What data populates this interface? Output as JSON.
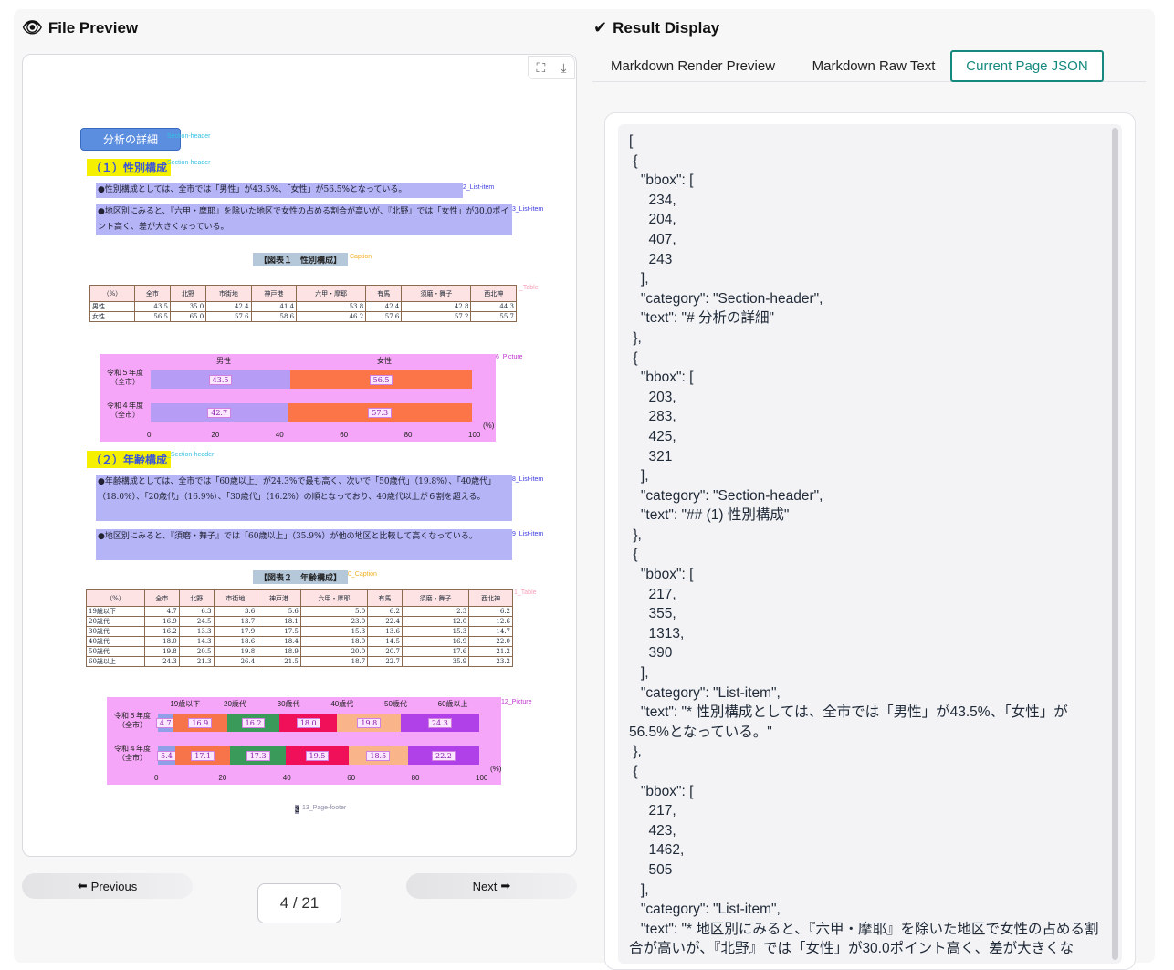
{
  "left_panel": {
    "title": "File Preview",
    "title_icon": "eye-icon",
    "toolbar": {
      "fullscreen_icon": "fullscreen-icon",
      "download_icon": "download-icon"
    },
    "document": {
      "section_header": "分析の詳細",
      "section_tag": "Section-header",
      "sub1": "（１）性別構成",
      "sub1_tag": "Section-header",
      "item2": "●性別構成としては、全市では「男性」が43.5%、「女性」が56.5%となっている。",
      "item2_tag": "2_List-item",
      "item3": "●地区別にみると、『六甲・摩耶』を除いた地区で女性の占める割合が高いが、『北野』では「女性」が30.0ポイント高く、差が大きくなっている。",
      "item3_tag": "3_List-item",
      "caption1": "【図表１　性別構成】",
      "caption1_tag": "Caption",
      "table1_tag": "_Table",
      "table1": {
        "headers": [
          "（%）",
          "全市",
          "北野",
          "市街地",
          "神戸港",
          "六甲・摩耶",
          "有馬",
          "須磨・舞子",
          "西北神"
        ],
        "rows": [
          [
            "男性",
            "43.5",
            "35.0",
            "42.4",
            "41.4",
            "53.8",
            "42.4",
            "42.8",
            "44.3"
          ],
          [
            "女性",
            "56.5",
            "65.0",
            "57.6",
            "58.6",
            "46.2",
            "57.6",
            "57.2",
            "55.7"
          ]
        ]
      },
      "picture1_tag": "6_Picture",
      "picture1": {
        "legend": [
          "男性",
          "女性"
        ],
        "rows": [
          {
            "label": "令和５年度\n（全市）",
            "values": [
              "43.5",
              "56.5"
            ]
          },
          {
            "label": "令和４年度\n（全市）",
            "values": [
              "42.7",
              "57.3"
            ]
          }
        ],
        "axis": [
          "0",
          "20",
          "40",
          "60",
          "80",
          "100"
        ],
        "unit": "(%)"
      },
      "sub2": "（２）年齢構成",
      "sub2_tag": "_Section-header",
      "item8": "●年齢構成としては、全市では「60歳以上」が24.3%で最も高く、次いで「50歳代」（19.8%）、「40歳代」（18.0%）、「20歳代」（16.9%）、「30歳代」（16.2%）の順となっており、40歳代以上が６割を超える。",
      "item8_tag": "8_List-item",
      "item9": "●地区別にみると、『須磨・舞子』では「60歳以上」（35.9%）が他の地区と比較して高くなっている。",
      "item9_tag": "9_List-item",
      "caption2": "【図表２　年齢構成】",
      "caption2_tag": "0_Caption",
      "table2_tag": "1_Table",
      "table2": {
        "headers": [
          "（%）",
          "全市",
          "北野",
          "市街地",
          "神戸港",
          "六甲・摩耶",
          "有馬",
          "須磨・舞子",
          "西北神"
        ],
        "rows": [
          [
            "19歳以下",
            "4.7",
            "6.3",
            "3.6",
            "5.6",
            "5.0",
            "6.2",
            "2.3",
            "6.2"
          ],
          [
            "20歳代",
            "16.9",
            "24.5",
            "13.7",
            "18.1",
            "23.0",
            "22.4",
            "12.0",
            "12.6"
          ],
          [
            "30歳代",
            "16.2",
            "13.3",
            "17.9",
            "17.5",
            "15.3",
            "13.6",
            "15.3",
            "14.7"
          ],
          [
            "40歳代",
            "18.0",
            "14.3",
            "18.6",
            "18.4",
            "18.0",
            "14.5",
            "16.9",
            "22.0"
          ],
          [
            "50歳代",
            "19.8",
            "20.5",
            "19.8",
            "18.9",
            "20.0",
            "20.7",
            "17.6",
            "21.2"
          ],
          [
            "60歳以上",
            "24.3",
            "21.3",
            "26.4",
            "21.5",
            "18.7",
            "22.7",
            "35.9",
            "23.2"
          ]
        ]
      },
      "picture2_tag": "12_Picture",
      "picture2": {
        "legend": [
          "19歳以下",
          "20歳代",
          "30歳代",
          "40歳代",
          "50歳代",
          "60歳以上"
        ],
        "rows": [
          {
            "label": "令和５年度\n（全市）",
            "values": [
              "4.7",
              "16.9",
              "16.2",
              "18.0",
              "19.8",
              "24.3"
            ]
          },
          {
            "label": "令和４年度\n（全市）",
            "values": [
              "5.4",
              "17.1",
              "17.3",
              "19.5",
              "18.5",
              "22.2"
            ]
          }
        ],
        "axis": [
          "0",
          "20",
          "40",
          "60",
          "80",
          "100"
        ],
        "unit": "(%)",
        "colors": [
          "#8fa0e8",
          "#f7734a",
          "#3a9a5a",
          "#f0105a",
          "#f9b48a",
          "#b040e8"
        ]
      },
      "footer_num": "3",
      "footer_tag": "13_Page-footer"
    },
    "prev_label": "Previous",
    "prev_icon": "arrow-left-icon",
    "next_label": "Next",
    "next_icon": "arrow-right-icon",
    "page_indicator": "4 / 21"
  },
  "right_panel": {
    "title": "Result Display",
    "title_icon": "checkmark-icon",
    "tabs": [
      {
        "label": "Markdown Render Preview",
        "active": false
      },
      {
        "label": "Markdown Raw Text",
        "active": false
      },
      {
        "label": "Current Page JSON",
        "active": true
      }
    ],
    "json_text": "[\n {\n   \"bbox\": [\n     234,\n     204,\n     407,\n     243\n   ],\n   \"category\": \"Section-header\",\n   \"text\": \"# 分析の詳細\"\n },\n {\n   \"bbox\": [\n     203,\n     283,\n     425,\n     321\n   ],\n   \"category\": \"Section-header\",\n   \"text\": \"## (1) 性別構成\"\n },\n {\n   \"bbox\": [\n     217,\n     355,\n     1313,\n     390\n   ],\n   \"category\": \"List-item\",\n   \"text\": \"* 性別構成としては、全市では「男性」が43.5%、「女性」が56.5%となっている。\"\n },\n {\n   \"bbox\": [\n     217,\n     423,\n     1462,\n     505\n   ],\n   \"category\": \"List-item\",\n   \"text\": \"* 地区別にみると、『六甲・摩耶』を除いた地区で女性の占める割合が高いが、『北野』では「女性」が30.0ポイント高く、差が大きくな"
  }
}
